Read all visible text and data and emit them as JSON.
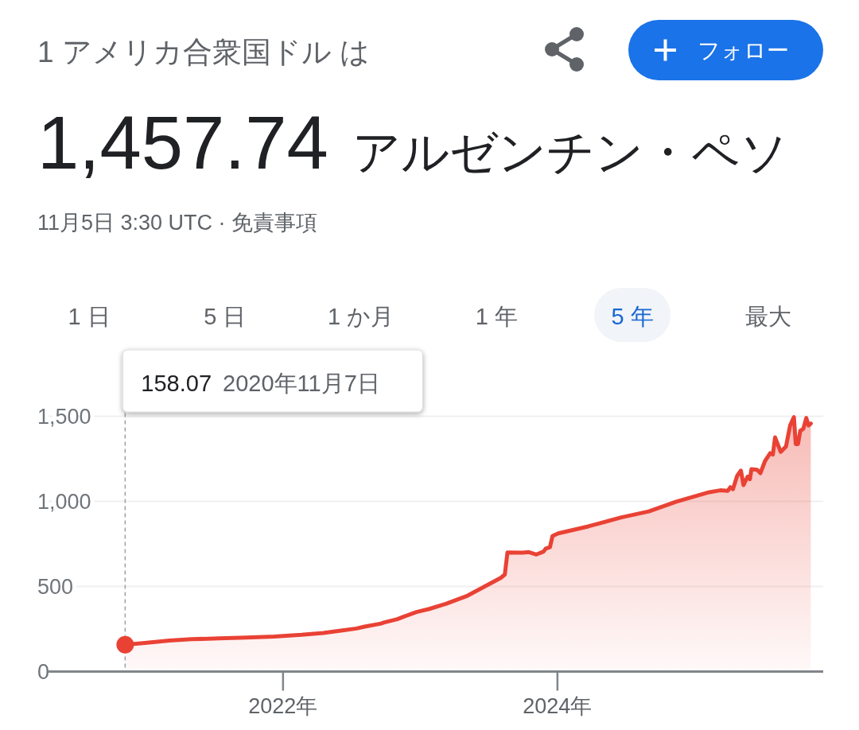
{
  "chart_data": {
    "type": "area",
    "title": "1 アメリカ合衆国ドル は",
    "subtitle": "1,457.74 アルゼンチン・ペソ",
    "annotations": [
      "11月5日 3:30 UTC · 免責事項",
      "フォロー",
      "158.07 2020年11月7日",
      "1 日",
      "5 日",
      "1 か月",
      "1 年",
      "5 年",
      "最大"
    ],
    "xlim": [
      "2020-04-15",
      "2025-12-08"
    ],
    "xticks": [
      {
        "value": "2022-01-01",
        "label": "2022年"
      },
      {
        "value": "2024-01-01",
        "label": "2024年"
      }
    ],
    "ylim": [
      0,
      1500
    ],
    "yticks": [
      0,
      500,
      {
        "value": 1000,
        "label": "1,000"
      },
      {
        "value": 1500,
        "label": "1,500"
      }
    ],
    "grid": "y",
    "ref_lines": [
      {
        "axis": "x",
        "value": "2020-11-07",
        "line_style": "dashed",
        "color": "#9aa0a6"
      }
    ],
    "series": [
      {
        "color": "#e94235",
        "x": [
          "2020-11-07",
          "2020-12-30",
          "2021-03-05",
          "2021-05-03",
          "2021-07-15",
          "2021-09-26",
          "2021-12-08",
          "2022-02-19",
          "2022-04-18",
          "2022-06-08",
          "2022-07-15",
          "2022-08-06",
          "2022-09-19",
          "2022-09-26",
          "2022-11-01",
          "2022-11-20",
          "2022-12-22",
          "2023-01-25",
          "2023-03-10",
          "2023-05-07",
          "2023-08-03",
          "2023-08-14",
          "2023-08-21",
          "2023-09-30",
          "2023-10-17",
          "2023-11-06",
          "2023-11-25",
          "2023-12-01",
          "2023-12-12",
          "2023-12-19",
          "2024-01-03",
          "2024-03-23",
          "2024-06-19",
          "2024-08-31",
          "2024-11-12",
          "2025-02-08",
          "2025-03-09",
          "2025-03-29",
          "2025-04-05",
          "2025-04-12",
          "2025-04-23",
          "2025-05-03",
          "2025-05-10",
          "2025-05-21",
          "2025-05-27",
          "2025-05-31",
          "2025-06-15",
          "2025-06-24",
          "2025-07-06",
          "2025-07-20",
          "2025-07-27",
          "2025-08-02",
          "2025-08-17",
          "2025-08-31",
          "2025-09-11",
          "2025-09-21",
          "2025-09-26",
          "2025-10-02",
          "2025-10-08",
          "2025-10-16",
          "2025-10-24",
          "2025-10-30",
          "2025-11-05"
        ],
        "values": [
          158.07,
          168,
          182,
          190,
          195,
          200,
          206,
          216,
          227,
          242,
          253,
          264,
          282,
          288,
          308,
          324,
          350,
          368,
          398,
          446,
          550,
          570,
          700,
          699,
          702,
          688,
          705,
          723,
          731,
          797,
          812,
          853,
          906,
          941,
          998,
          1054,
          1065,
          1062,
          1083,
          1072,
          1150,
          1181,
          1096,
          1146,
          1130,
          1189,
          1186,
          1166,
          1236,
          1283,
          1275,
          1376,
          1291,
          1322,
          1446,
          1495,
          1337,
          1337,
          1415,
          1426,
          1490,
          1446,
          1457.74
        ]
      },
      {
        "type": "scatter",
        "color": "#e94235",
        "x": [
          "2020-11-07"
        ],
        "values": [
          158.07
        ]
      }
    ]
  }
}
